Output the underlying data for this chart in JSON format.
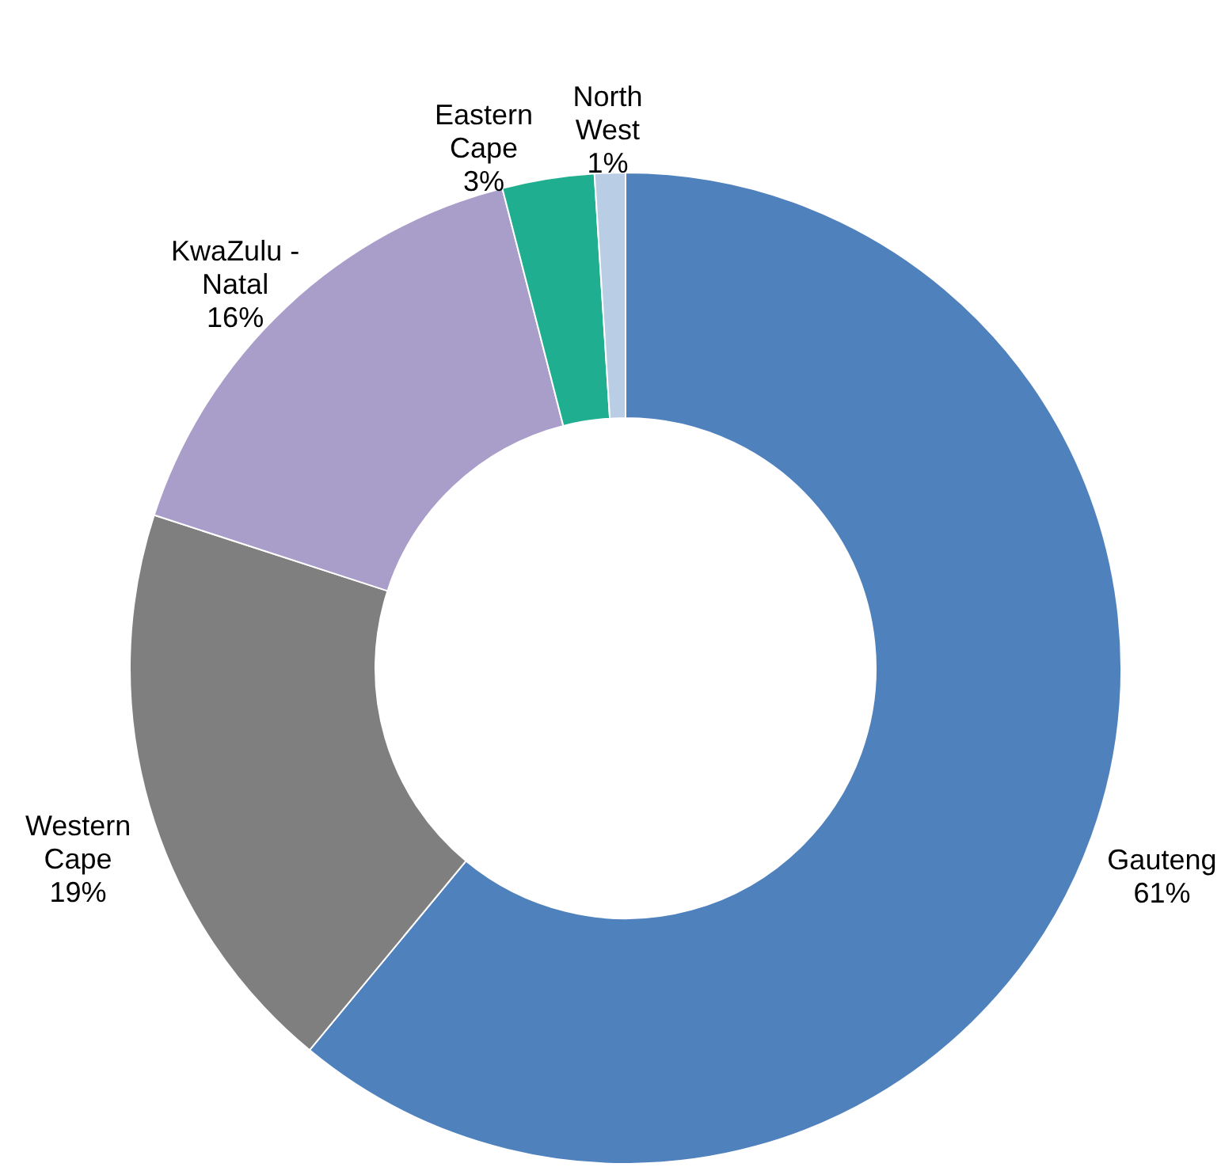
{
  "chart_data": {
    "type": "donut",
    "categories": [
      "Gauteng",
      "Western Cape",
      "KwaZulu - Natal",
      "Eastern Cape",
      "North West"
    ],
    "values": [
      61,
      19,
      16,
      3,
      1
    ],
    "value_labels": [
      "61%",
      "19%",
      "16%",
      "3%",
      "1%"
    ],
    "colors": [
      "#4f81bd",
      "#7f7f7f",
      "#a99dc9",
      "#1fae8f",
      "#b9cde5"
    ]
  }
}
